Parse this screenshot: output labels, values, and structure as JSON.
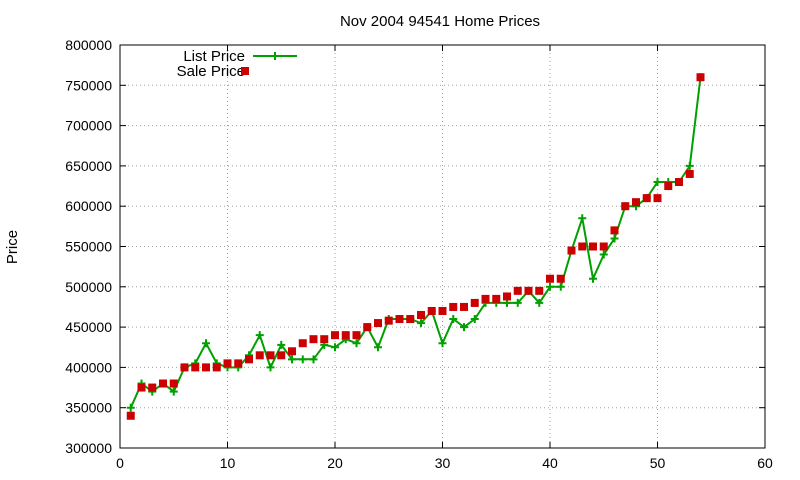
{
  "chart_data": {
    "type": "line",
    "title": "Nov 2004 94541 Home Prices",
    "xlabel": "",
    "ylabel": "Price",
    "xlim": [
      0,
      60
    ],
    "ylim": [
      300000,
      800000
    ],
    "x_ticks": [
      0,
      10,
      20,
      30,
      40,
      50,
      60
    ],
    "y_ticks": [
      300000,
      350000,
      400000,
      450000,
      500000,
      550000,
      600000,
      650000,
      700000,
      750000,
      800000
    ],
    "grid": true,
    "legend_position": "top-left",
    "series": [
      {
        "name": "List Price",
        "style": "line-plus",
        "color": "#00a000",
        "points": [
          [
            1,
            350000
          ],
          [
            2,
            380000
          ],
          [
            3,
            370000
          ],
          [
            4,
            380000
          ],
          [
            5,
            370000
          ],
          [
            6,
            400000
          ],
          [
            7,
            405000
          ],
          [
            8,
            430000
          ],
          [
            9,
            405000
          ],
          [
            10,
            400000
          ],
          [
            11,
            400000
          ],
          [
            12,
            415000
          ],
          [
            13,
            440000
          ],
          [
            14,
            400000
          ],
          [
            15,
            428000
          ],
          [
            16,
            410000
          ],
          [
            17,
            410000
          ],
          [
            18,
            410000
          ],
          [
            19,
            428000
          ],
          [
            20,
            425000
          ],
          [
            21,
            435000
          ],
          [
            22,
            430000
          ],
          [
            23,
            450000
          ],
          [
            24,
            425000
          ],
          [
            25,
            460000
          ],
          [
            26,
            460000
          ],
          [
            27,
            460000
          ],
          [
            28,
            455000
          ],
          [
            29,
            470000
          ],
          [
            30,
            430000
          ],
          [
            31,
            460000
          ],
          [
            32,
            450000
          ],
          [
            33,
            460000
          ],
          [
            34,
            480000
          ],
          [
            35,
            480000
          ],
          [
            36,
            480000
          ],
          [
            37,
            480000
          ],
          [
            38,
            495000
          ],
          [
            39,
            480000
          ],
          [
            40,
            500000
          ],
          [
            41,
            500000
          ],
          [
            42,
            545000
          ],
          [
            43,
            585000
          ],
          [
            44,
            510000
          ],
          [
            45,
            540000
          ],
          [
            46,
            560000
          ],
          [
            47,
            600000
          ],
          [
            48,
            600000
          ],
          [
            49,
            610000
          ],
          [
            50,
            630000
          ],
          [
            51,
            630000
          ],
          [
            52,
            630000
          ],
          [
            53,
            650000
          ],
          [
            54,
            760000
          ]
        ]
      },
      {
        "name": "Sale Price",
        "style": "square",
        "color": "#cc0000",
        "points": [
          [
            1,
            340000
          ],
          [
            2,
            375000
          ],
          [
            3,
            375000
          ],
          [
            4,
            380000
          ],
          [
            5,
            380000
          ],
          [
            6,
            400000
          ],
          [
            7,
            400000
          ],
          [
            8,
            400000
          ],
          [
            9,
            400000
          ],
          [
            10,
            405000
          ],
          [
            11,
            405000
          ],
          [
            12,
            410000
          ],
          [
            13,
            415000
          ],
          [
            14,
            415000
          ],
          [
            15,
            415000
          ],
          [
            16,
            420000
          ],
          [
            17,
            430000
          ],
          [
            18,
            435000
          ],
          [
            19,
            435000
          ],
          [
            20,
            440000
          ],
          [
            21,
            440000
          ],
          [
            22,
            440000
          ],
          [
            23,
            450000
          ],
          [
            24,
            455000
          ],
          [
            25,
            458000
          ],
          [
            26,
            460000
          ],
          [
            27,
            460000
          ],
          [
            28,
            465000
          ],
          [
            29,
            470000
          ],
          [
            30,
            470000
          ],
          [
            31,
            475000
          ],
          [
            32,
            475000
          ],
          [
            33,
            480000
          ],
          [
            34,
            485000
          ],
          [
            35,
            485000
          ],
          [
            36,
            488000
          ],
          [
            37,
            495000
          ],
          [
            38,
            495000
          ],
          [
            39,
            495000
          ],
          [
            40,
            510000
          ],
          [
            41,
            510000
          ],
          [
            42,
            545000
          ],
          [
            43,
            550000
          ],
          [
            44,
            550000
          ],
          [
            45,
            550000
          ],
          [
            46,
            570000
          ],
          [
            47,
            600000
          ],
          [
            48,
            605000
          ],
          [
            49,
            610000
          ],
          [
            50,
            610000
          ],
          [
            51,
            625000
          ],
          [
            52,
            630000
          ],
          [
            53,
            640000
          ],
          [
            54,
            760000
          ]
        ]
      }
    ]
  }
}
